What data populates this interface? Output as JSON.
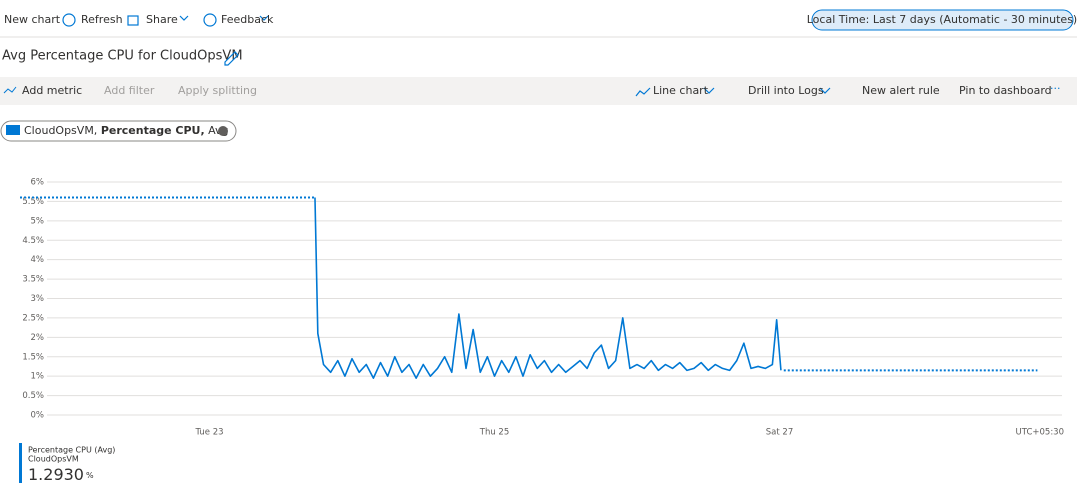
{
  "toolbar": {
    "items": [
      "New chart",
      "Refresh",
      "Share",
      "Feedback"
    ],
    "time_range": "Local Time: Last 7 days (Automatic - 30 minutes)"
  },
  "header": {
    "title": "Avg Percentage CPU for CloudOpsVM"
  },
  "command_bar": {
    "left": [
      "Add metric",
      "Add filter",
      "Apply splitting"
    ],
    "right": [
      "Line chart",
      "Drill into Logs",
      "New alert rule",
      "Pin to dashboard"
    ]
  },
  "metric_chip": {
    "parts": [
      "CloudOpsVM,",
      "Percentage CPU,",
      "Avg"
    ]
  },
  "chart_data": {
    "type": "line",
    "xlim": [
      21.67,
      29
    ],
    "xticks": [
      {
        "value": 23,
        "label": "Tue 23"
      },
      {
        "value": 25,
        "label": "Thu 25"
      },
      {
        "value": 27,
        "label": "Sat 27"
      }
    ],
    "timezone_label": "UTC+05:30",
    "ylim": [
      0,
      6
    ],
    "yticks": [
      {
        "value": 0,
        "label": "0%"
      },
      {
        "value": 0.5,
        "label": "0.5%"
      },
      {
        "value": 1,
        "label": "1%"
      },
      {
        "value": 1.5,
        "label": "1.5%"
      },
      {
        "value": 2,
        "label": "2%"
      },
      {
        "value": 2.5,
        "label": "2.5%"
      },
      {
        "value": 3,
        "label": "3%"
      },
      {
        "value": 3.5,
        "label": "3.5%"
      },
      {
        "value": 4,
        "label": "4%"
      },
      {
        "value": 4.5,
        "label": "4.5%"
      },
      {
        "value": 5,
        "label": "5%"
      },
      {
        "value": 5.5,
        "label": "5.5%"
      },
      {
        "value": 6,
        "label": "6%"
      }
    ],
    "grid": true,
    "series": [
      {
        "name": "Percentage CPU (Avg)",
        "color": "#0078d4",
        "style": "solid",
        "x": [
          23.74,
          23.76,
          23.8,
          23.85,
          23.9,
          23.95,
          24.0,
          24.05,
          24.1,
          24.15,
          24.2,
          24.25,
          24.3,
          24.35,
          24.4,
          24.45,
          24.5,
          24.55,
          24.6,
          24.65,
          24.7,
          24.75,
          24.8,
          24.85,
          24.9,
          24.95,
          25.0,
          25.05,
          25.1,
          25.15,
          25.2,
          25.25,
          25.3,
          25.35,
          25.4,
          25.45,
          25.5,
          25.55,
          25.6,
          25.65,
          25.7,
          25.75,
          25.8,
          25.85,
          25.9,
          25.95,
          26.0,
          26.05,
          26.1,
          26.15,
          26.2,
          26.25,
          26.3,
          26.35,
          26.4,
          26.45,
          26.5,
          26.55,
          26.6,
          26.65,
          26.7,
          26.75,
          26.8,
          26.85,
          26.9,
          26.95,
          26.98,
          27.01
        ],
        "values": [
          5.6,
          2.1,
          1.3,
          1.1,
          1.4,
          1.0,
          1.45,
          1.1,
          1.3,
          0.95,
          1.35,
          1.0,
          1.5,
          1.1,
          1.3,
          0.95,
          1.3,
          1.0,
          1.2,
          1.5,
          1.1,
          2.6,
          1.2,
          2.2,
          1.1,
          1.5,
          1.0,
          1.4,
          1.1,
          1.5,
          1.0,
          1.55,
          1.2,
          1.4,
          1.1,
          1.3,
          1.1,
          1.25,
          1.4,
          1.2,
          1.6,
          1.8,
          1.2,
          1.4,
          2.5,
          1.2,
          1.3,
          1.2,
          1.4,
          1.15,
          1.3,
          1.2,
          1.35,
          1.15,
          1.2,
          1.35,
          1.15,
          1.3,
          1.2,
          1.15,
          1.4,
          1.85,
          1.2,
          1.25,
          1.2,
          1.3,
          2.45,
          1.15
        ]
      },
      {
        "color": "#0078d4",
        "style": "dotted",
        "x": [
          21.67,
          23.74
        ],
        "values": [
          5.6,
          5.6
        ]
      },
      {
        "color": "#0078d4",
        "style": "dotted",
        "x": [
          27.03,
          28.81
        ],
        "values": [
          1.15,
          1.15
        ]
      }
    ],
    "legend": {
      "resource": "CloudOpsVM",
      "summary": {
        "value": 1.293,
        "label": "1.2930"
      },
      "unit": "%"
    }
  }
}
